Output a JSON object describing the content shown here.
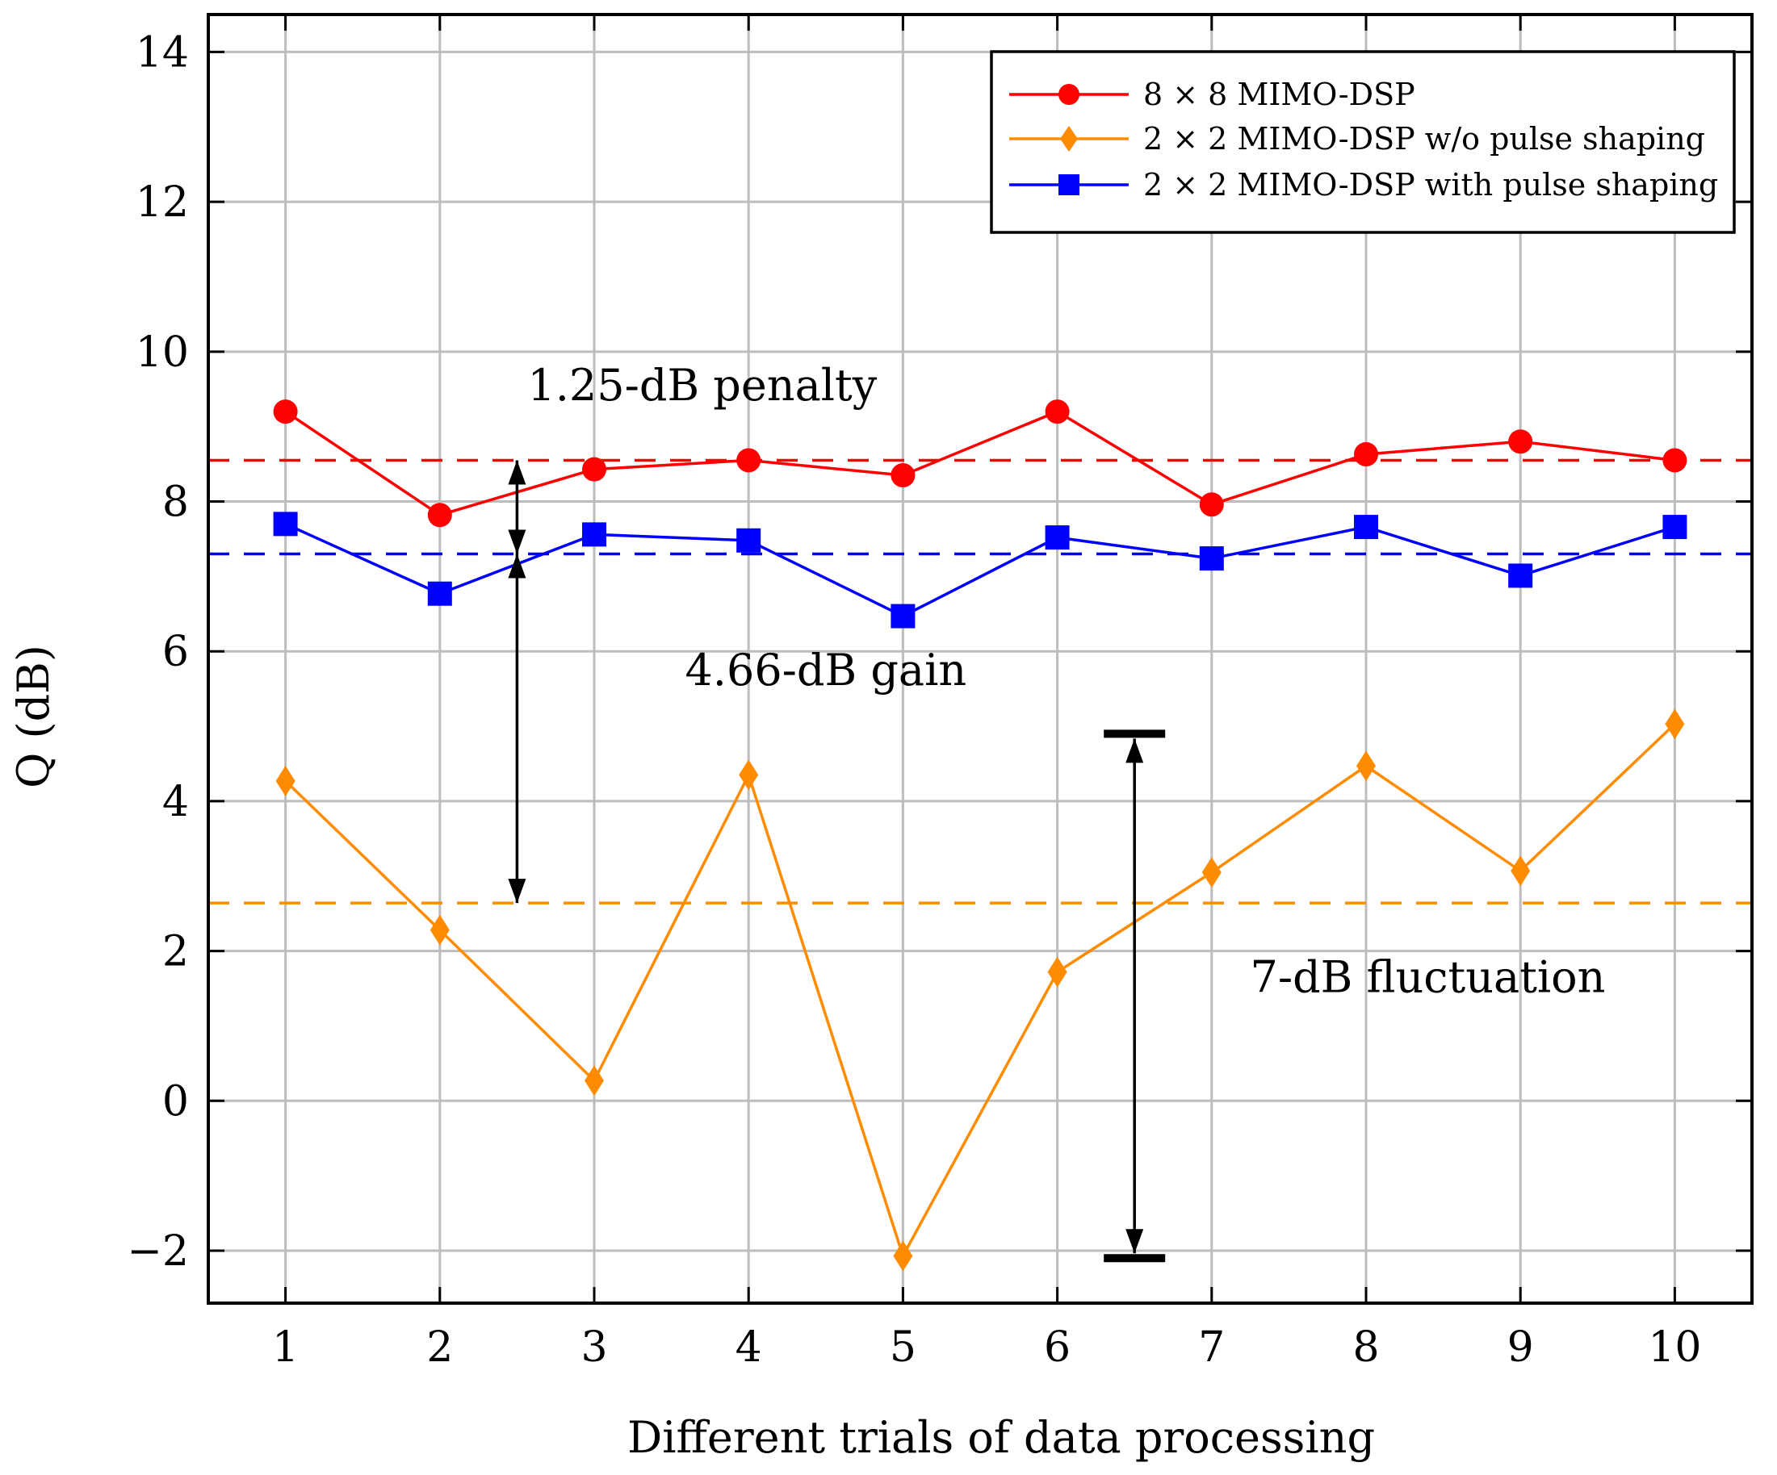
{
  "chart_data": {
    "type": "line",
    "xlabel": "Different trials of data processing",
    "ylabel": "Q (dB)",
    "xlim": [
      0.5,
      10.5
    ],
    "ylim": [
      -2.7,
      14.5
    ],
    "x": [
      1,
      2,
      3,
      4,
      5,
      6,
      7,
      8,
      9,
      10
    ],
    "x_tick_labels": [
      "1",
      "2",
      "3",
      "4",
      "5",
      "6",
      "7",
      "8",
      "9",
      "10"
    ],
    "y_ticks": [
      -2,
      0,
      2,
      4,
      6,
      8,
      10,
      12,
      14
    ],
    "y_tick_labels": [
      "−2",
      "0",
      "2",
      "4",
      "6",
      "8",
      "10",
      "12",
      "14"
    ],
    "grid": true,
    "legend_position": "top-right",
    "series": [
      {
        "name": "8 × 8 MIMO-DSP",
        "color": "#ff0000",
        "marker": "circle",
        "values": [
          9.2,
          7.82,
          8.43,
          8.55,
          8.35,
          9.2,
          7.96,
          8.63,
          8.8,
          8.55
        ],
        "mean": 8.55
      },
      {
        "name": "2 × 2 MIMO-DSP w/o pulse shaping",
        "color": "#ff8c00",
        "marker": "diamond",
        "values": [
          4.27,
          2.28,
          0.27,
          4.35,
          -2.07,
          1.72,
          3.05,
          4.47,
          3.07,
          5.03
        ],
        "mean": 2.64
      },
      {
        "name": "2 × 2 MIMO-DSP with pulse shaping",
        "color": "#0000ff",
        "marker": "square",
        "values": [
          7.7,
          6.77,
          7.56,
          7.48,
          6.47,
          7.52,
          7.24,
          7.66,
          7.01,
          7.66
        ],
        "mean": 7.3
      }
    ],
    "annotations": [
      {
        "text": "1.25-dB penalty",
        "x": 3.7,
        "y": 9.35
      },
      {
        "text": "4.66-dB gain",
        "x": 4.5,
        "y": 5.55
      },
      {
        "text": "7-dB fluctuation",
        "x": 8.4,
        "y": 1.45
      }
    ],
    "arrows": [
      {
        "name": "penalty-arrow",
        "x": 2.5,
        "y_from": 8.55,
        "y_to": 7.3
      },
      {
        "name": "gain-arrow",
        "x": 2.5,
        "y_from": 7.3,
        "y_to": 2.64
      },
      {
        "name": "fluctuation-arrow",
        "x": 6.5,
        "y_from": 4.9,
        "y_to": -2.1
      }
    ]
  }
}
